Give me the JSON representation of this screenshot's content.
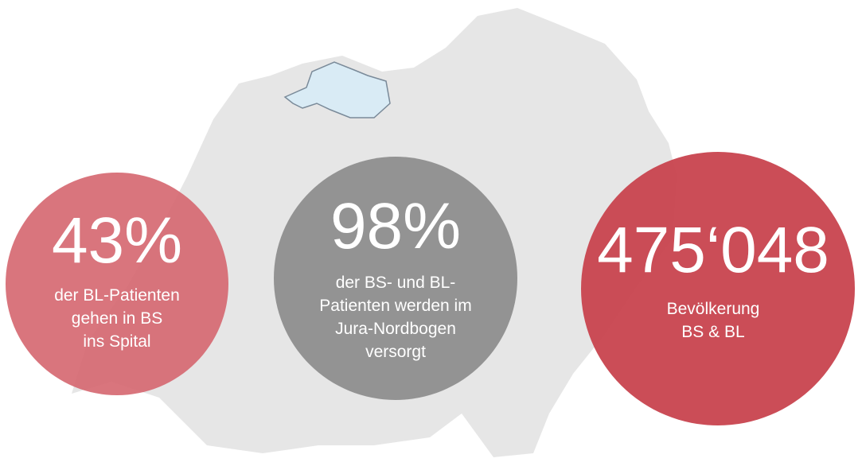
{
  "stats": [
    {
      "value": "43%",
      "lines": [
        "der BL-Patienten",
        "gehen in BS",
        "ins Spital"
      ]
    },
    {
      "value": "98%",
      "lines": [
        "der BS- und BL-",
        "Patienten werden im",
        "Jura-Nordbogen",
        "versorgt"
      ]
    },
    {
      "value": "475‘048",
      "lines": [
        "Bevölkerung",
        "BS & BL"
      ]
    }
  ]
}
